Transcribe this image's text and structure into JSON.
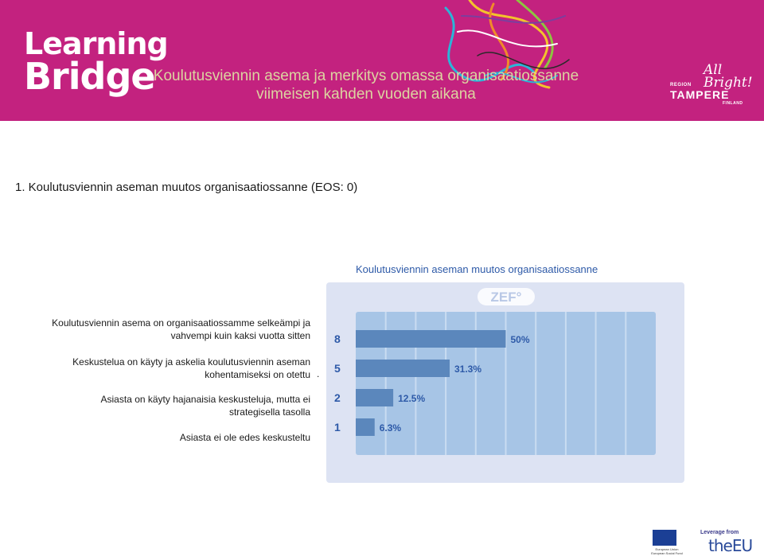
{
  "header": {
    "logo_line1": "Learning",
    "logo_line2": "Bridge",
    "title_line1": "Koulutusviennin asema ja merkitys omassa organisaatiossanne",
    "title_line2": "viimeisen kahden vuoden aikana",
    "partner_logo": {
      "tagline": "All Bright!",
      "region": "REGION",
      "name": "TAMPERE",
      "country": "FINLAND"
    }
  },
  "question": "1. Koulutusviennin aseman muutos organisaatiossanne (EOS: 0)",
  "answers": [
    {
      "line1": "Koulutusviennin asema on organisaatiossamme selkeämpi ja",
      "line2": "vahvempi kuin kaksi vuotta sitten"
    },
    {
      "line1": "Keskustelua on käyty ja askelia koulutusviennin aseman",
      "line2": "kohentamiseksi on otettu"
    },
    {
      "line1": "Asiasta on käyty hajanaisia keskusteluja, mutta ei",
      "line2": "strategisella tasolla"
    },
    {
      "line1": "Asiasta ei ole edes keskusteltu",
      "line2": ""
    }
  ],
  "stray_mark": ".",
  "chart_data": {
    "type": "bar",
    "orientation": "horizontal",
    "title": "Koulutusviennin aseman muutos organisaatiossanne",
    "badge": "ZEF°",
    "categories": [
      "Koulutusviennin asema on organisaatiossamme selkeämpi ja vahvempi kuin kaksi vuotta sitten",
      "Keskustelua on käyty ja askelia koulutusviennin aseman kohentamiseksi on otettu",
      "Asiasta on käyty hajanaisia keskusteluja, mutta ei strategisella tasolla",
      "Asiasta ei ole edes keskusteltu"
    ],
    "counts": [
      "8",
      "5",
      "2",
      "1"
    ],
    "values": [
      50,
      31.3,
      12.5,
      6.3
    ],
    "value_labels": [
      "50%",
      "31.3%",
      "12.5%",
      "6.3%"
    ],
    "xlim": [
      0,
      100
    ],
    "grid": true,
    "colors": {
      "bar": "#5b87bc",
      "plot_bg": "#a7c5e6",
      "gridline": "#c9dcf1",
      "panel": "#dde3f3",
      "count_text": "#2e5aa8",
      "label_text": "#2e5aa8"
    }
  },
  "footer": {
    "eu_small": "European Union European Social Fund",
    "leverage": "Leverage from",
    "the_eu": "theEU"
  },
  "colors": {
    "header_bg": "#c3227f",
    "title_text": "#dcd4a0"
  }
}
